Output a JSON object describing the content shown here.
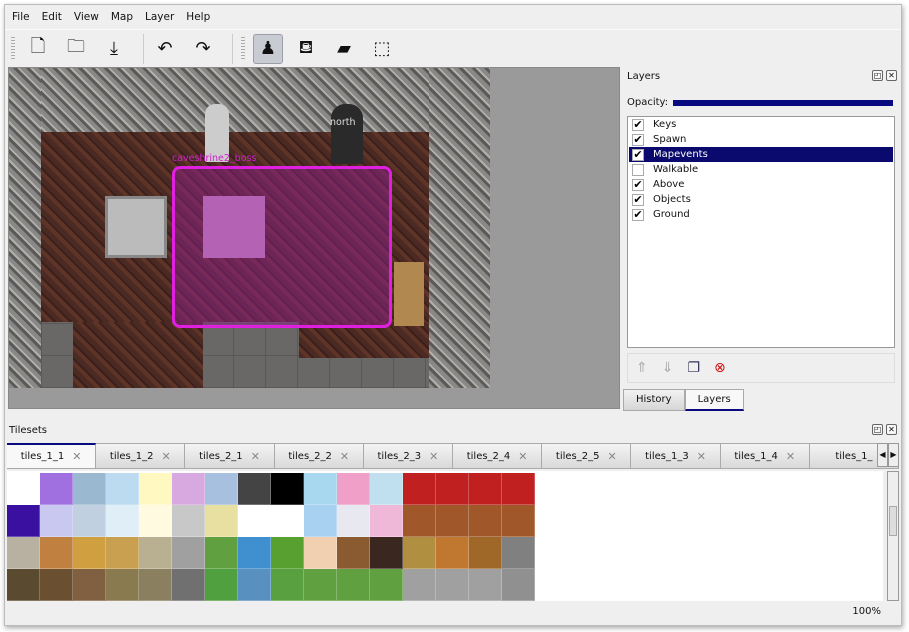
{
  "menu": [
    "File",
    "Edit",
    "View",
    "Map",
    "Layer",
    "Help"
  ],
  "toolbar": [
    {
      "name": "new-icon",
      "glyph": "🗋"
    },
    {
      "name": "open-icon",
      "glyph": "🗀"
    },
    {
      "name": "save-icon",
      "glyph": "⤓"
    },
    {
      "name": "undo-icon",
      "glyph": "↶"
    },
    {
      "name": "redo-icon",
      "glyph": "↷"
    },
    {
      "name": "stamp-brush-icon",
      "glyph": "♟",
      "active": true
    },
    {
      "name": "bucket-fill-icon",
      "glyph": "⛾"
    },
    {
      "name": "eraser-icon",
      "glyph": "▰"
    },
    {
      "name": "rect-select-icon",
      "glyph": "⬚"
    }
  ],
  "map": {
    "event_label": "caveshrine2_boss",
    "north_label": "north",
    "event_color": "#e020e0"
  },
  "layers_dock": {
    "title": "Layers",
    "opacity_label": "Opacity:",
    "opacity": 1.0,
    "layers": [
      {
        "name": "Keys",
        "visible": true
      },
      {
        "name": "Spawn",
        "visible": true
      },
      {
        "name": "Mapevents",
        "visible": true,
        "selected": true
      },
      {
        "name": "Walkable",
        "visible": false
      },
      {
        "name": "Above",
        "visible": true
      },
      {
        "name": "Objects",
        "visible": true
      },
      {
        "name": "Ground",
        "visible": true
      }
    ],
    "tabs": [
      "History",
      "Layers"
    ],
    "active_tab": "Layers"
  },
  "tilesets": {
    "title": "Tilesets",
    "tabs": [
      "tiles_1_1",
      "tiles_1_2",
      "tiles_2_1",
      "tiles_2_2",
      "tiles_2_3",
      "tiles_2_4",
      "tiles_2_5",
      "tiles_1_3",
      "tiles_1_4",
      "tiles_1_"
    ],
    "active": "tiles_1_1"
  },
  "status": {
    "zoom": "100%"
  },
  "accent": "#0a0a80"
}
